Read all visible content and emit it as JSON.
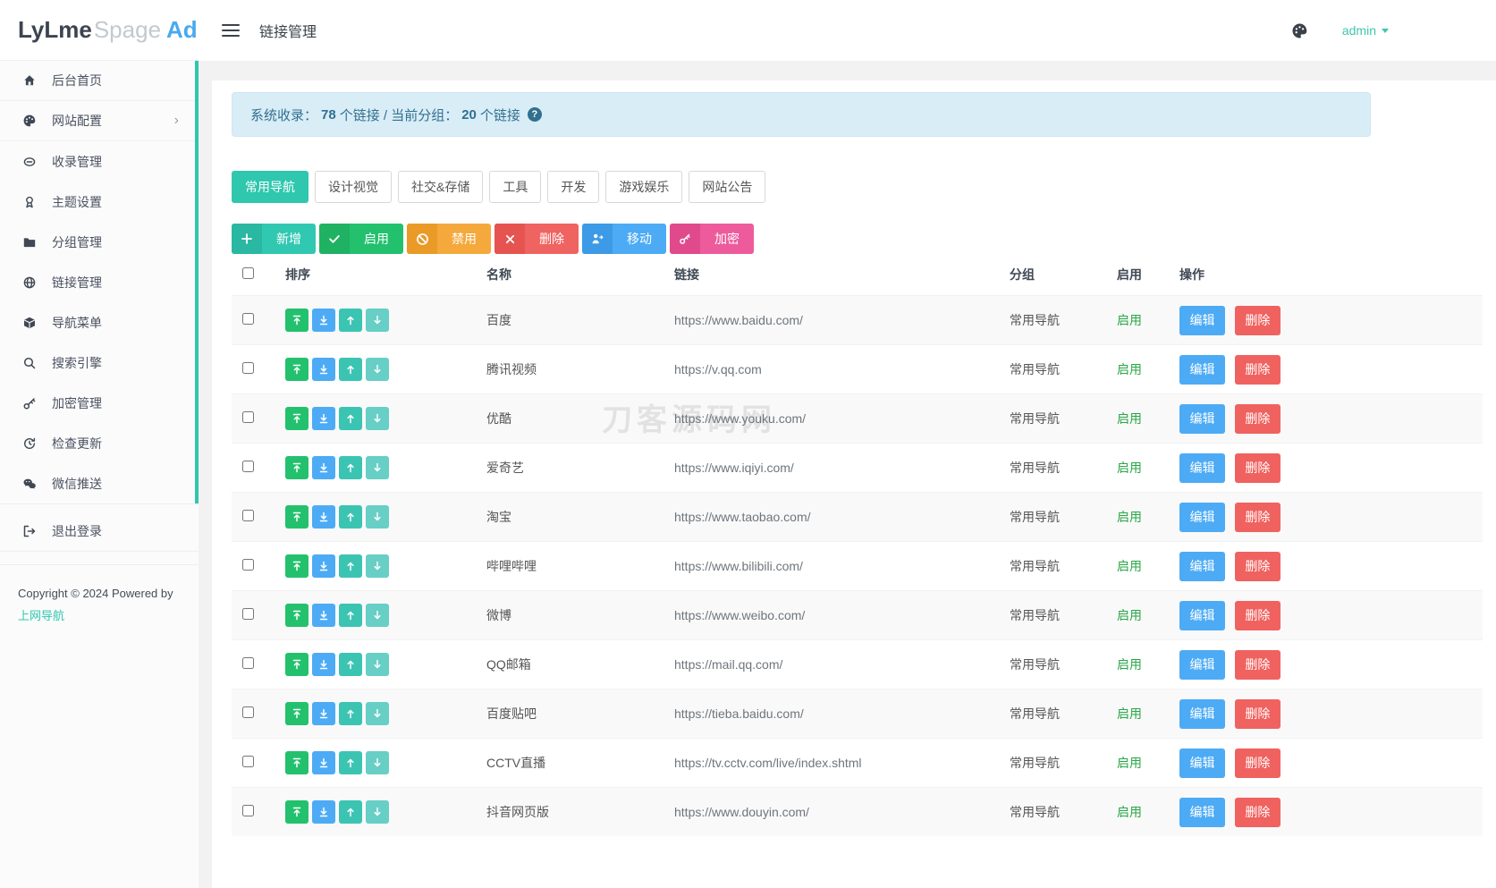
{
  "brand": {
    "lylme": "LyLme",
    "spage": "Spage",
    "admin": "Admin"
  },
  "topbar": {
    "title": "链接管理",
    "username": "admin"
  },
  "sidebar": {
    "items": [
      {
        "label": "后台首页",
        "icon": "home-icon"
      },
      {
        "label": "网站配置",
        "icon": "palette-icon",
        "has_submenu": true
      },
      {
        "label": "收录管理",
        "icon": "link-icon"
      },
      {
        "label": "主题设置",
        "icon": "award-icon"
      },
      {
        "label": "分组管理",
        "icon": "folder-icon"
      },
      {
        "label": "链接管理",
        "icon": "globe-icon"
      },
      {
        "label": "导航菜单",
        "icon": "cube-icon"
      },
      {
        "label": "搜索引擎",
        "icon": "search-icon"
      },
      {
        "label": "加密管理",
        "icon": "key-icon"
      },
      {
        "label": "检查更新",
        "icon": "update-icon"
      },
      {
        "label": "微信推送",
        "icon": "wechat-icon"
      }
    ],
    "logout_label": "退出登录",
    "copyright": "Copyright © 2024 Powered by",
    "copyright_link": "上网导航"
  },
  "alert": {
    "prefix": "系统收录：",
    "total": "78",
    "middle": " 个链接 / 当前分组：",
    "group_count": "20",
    "suffix": "个链接"
  },
  "tabs": [
    {
      "label": "常用导航",
      "active": true
    },
    {
      "label": "设计视觉",
      "active": false
    },
    {
      "label": "社交&存储",
      "active": false
    },
    {
      "label": "工具",
      "active": false
    },
    {
      "label": "开发",
      "active": false
    },
    {
      "label": "游戏娱乐",
      "active": false
    },
    {
      "label": "网站公告",
      "active": false
    }
  ],
  "toolbar": {
    "add": "新增",
    "enable": "启用",
    "disable": "禁用",
    "delete": "删除",
    "move": "移动",
    "encrypt": "加密"
  },
  "table": {
    "headers": {
      "sort": "排序",
      "name": "名称",
      "link": "链接",
      "group": "分组",
      "enabled": "启用",
      "actions": "操作"
    },
    "labels": {
      "enabled": "启用",
      "edit": "编辑",
      "delete": "删除"
    },
    "rows": [
      {
        "name": "百度",
        "link": "https://www.baidu.com/",
        "group": "常用导航"
      },
      {
        "name": "腾讯视频",
        "link": "https://v.qq.com",
        "group": "常用导航"
      },
      {
        "name": "优酷",
        "link": "https://www.youku.com/",
        "group": "常用导航"
      },
      {
        "name": "爱奇艺",
        "link": "https://www.iqiyi.com/",
        "group": "常用导航"
      },
      {
        "name": "淘宝",
        "link": "https://www.taobao.com/",
        "group": "常用导航"
      },
      {
        "name": "哔哩哔哩",
        "link": "https://www.bilibili.com/",
        "group": "常用导航"
      },
      {
        "name": "微博",
        "link": "https://www.weibo.com/",
        "group": "常用导航"
      },
      {
        "name": "QQ邮箱",
        "link": "https://mail.qq.com/",
        "group": "常用导航"
      },
      {
        "name": "百度贴吧",
        "link": "https://tieba.baidu.com/",
        "group": "常用导航"
      },
      {
        "name": "CCTV直播",
        "link": "https://tv.cctv.com/live/index.shtml",
        "group": "常用导航"
      },
      {
        "name": "抖音网页版",
        "link": "https://www.douyin.com/",
        "group": "常用导航"
      }
    ]
  },
  "watermark": "刀客源码网",
  "colors": {
    "primary_teal": "#2fc7ae",
    "green": "#23c16e",
    "orange": "#f5a93c",
    "red": "#ef6360",
    "blue": "#4dabf5",
    "pink": "#ee5b9c",
    "enabled_text": "#28a745",
    "alert_bg": "#d9edf7",
    "alert_text": "#31708f",
    "brand_blue": "#49a9ee"
  }
}
